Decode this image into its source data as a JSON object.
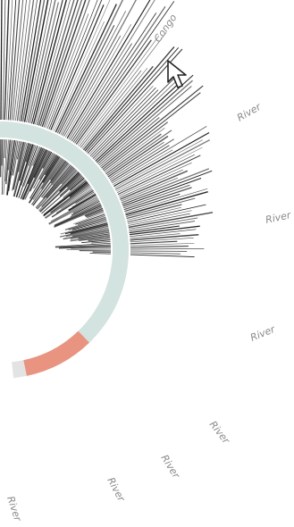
{
  "chart_data": {
    "type": "radial-bar",
    "labels": [
      {
        "text": "Congo"
      },
      {
        "text": "River"
      },
      {
        "text": "River"
      },
      {
        "text": "River"
      },
      {
        "text": "River"
      },
      {
        "text": "River"
      },
      {
        "text": "River"
      },
      {
        "text": "River"
      }
    ],
    "ring_segments": [
      {
        "name": "segment-1",
        "color": "#d3e3df"
      },
      {
        "name": "segment-2",
        "color": "#e89480"
      },
      {
        "name": "segment-3",
        "color": "#e3e3e3"
      }
    ],
    "colors": {
      "bars": "#1a1a1a",
      "background": "#ffffff"
    },
    "grid": false,
    "legend": "none"
  },
  "cursor": {
    "icon": "arrow-cursor-icon"
  }
}
